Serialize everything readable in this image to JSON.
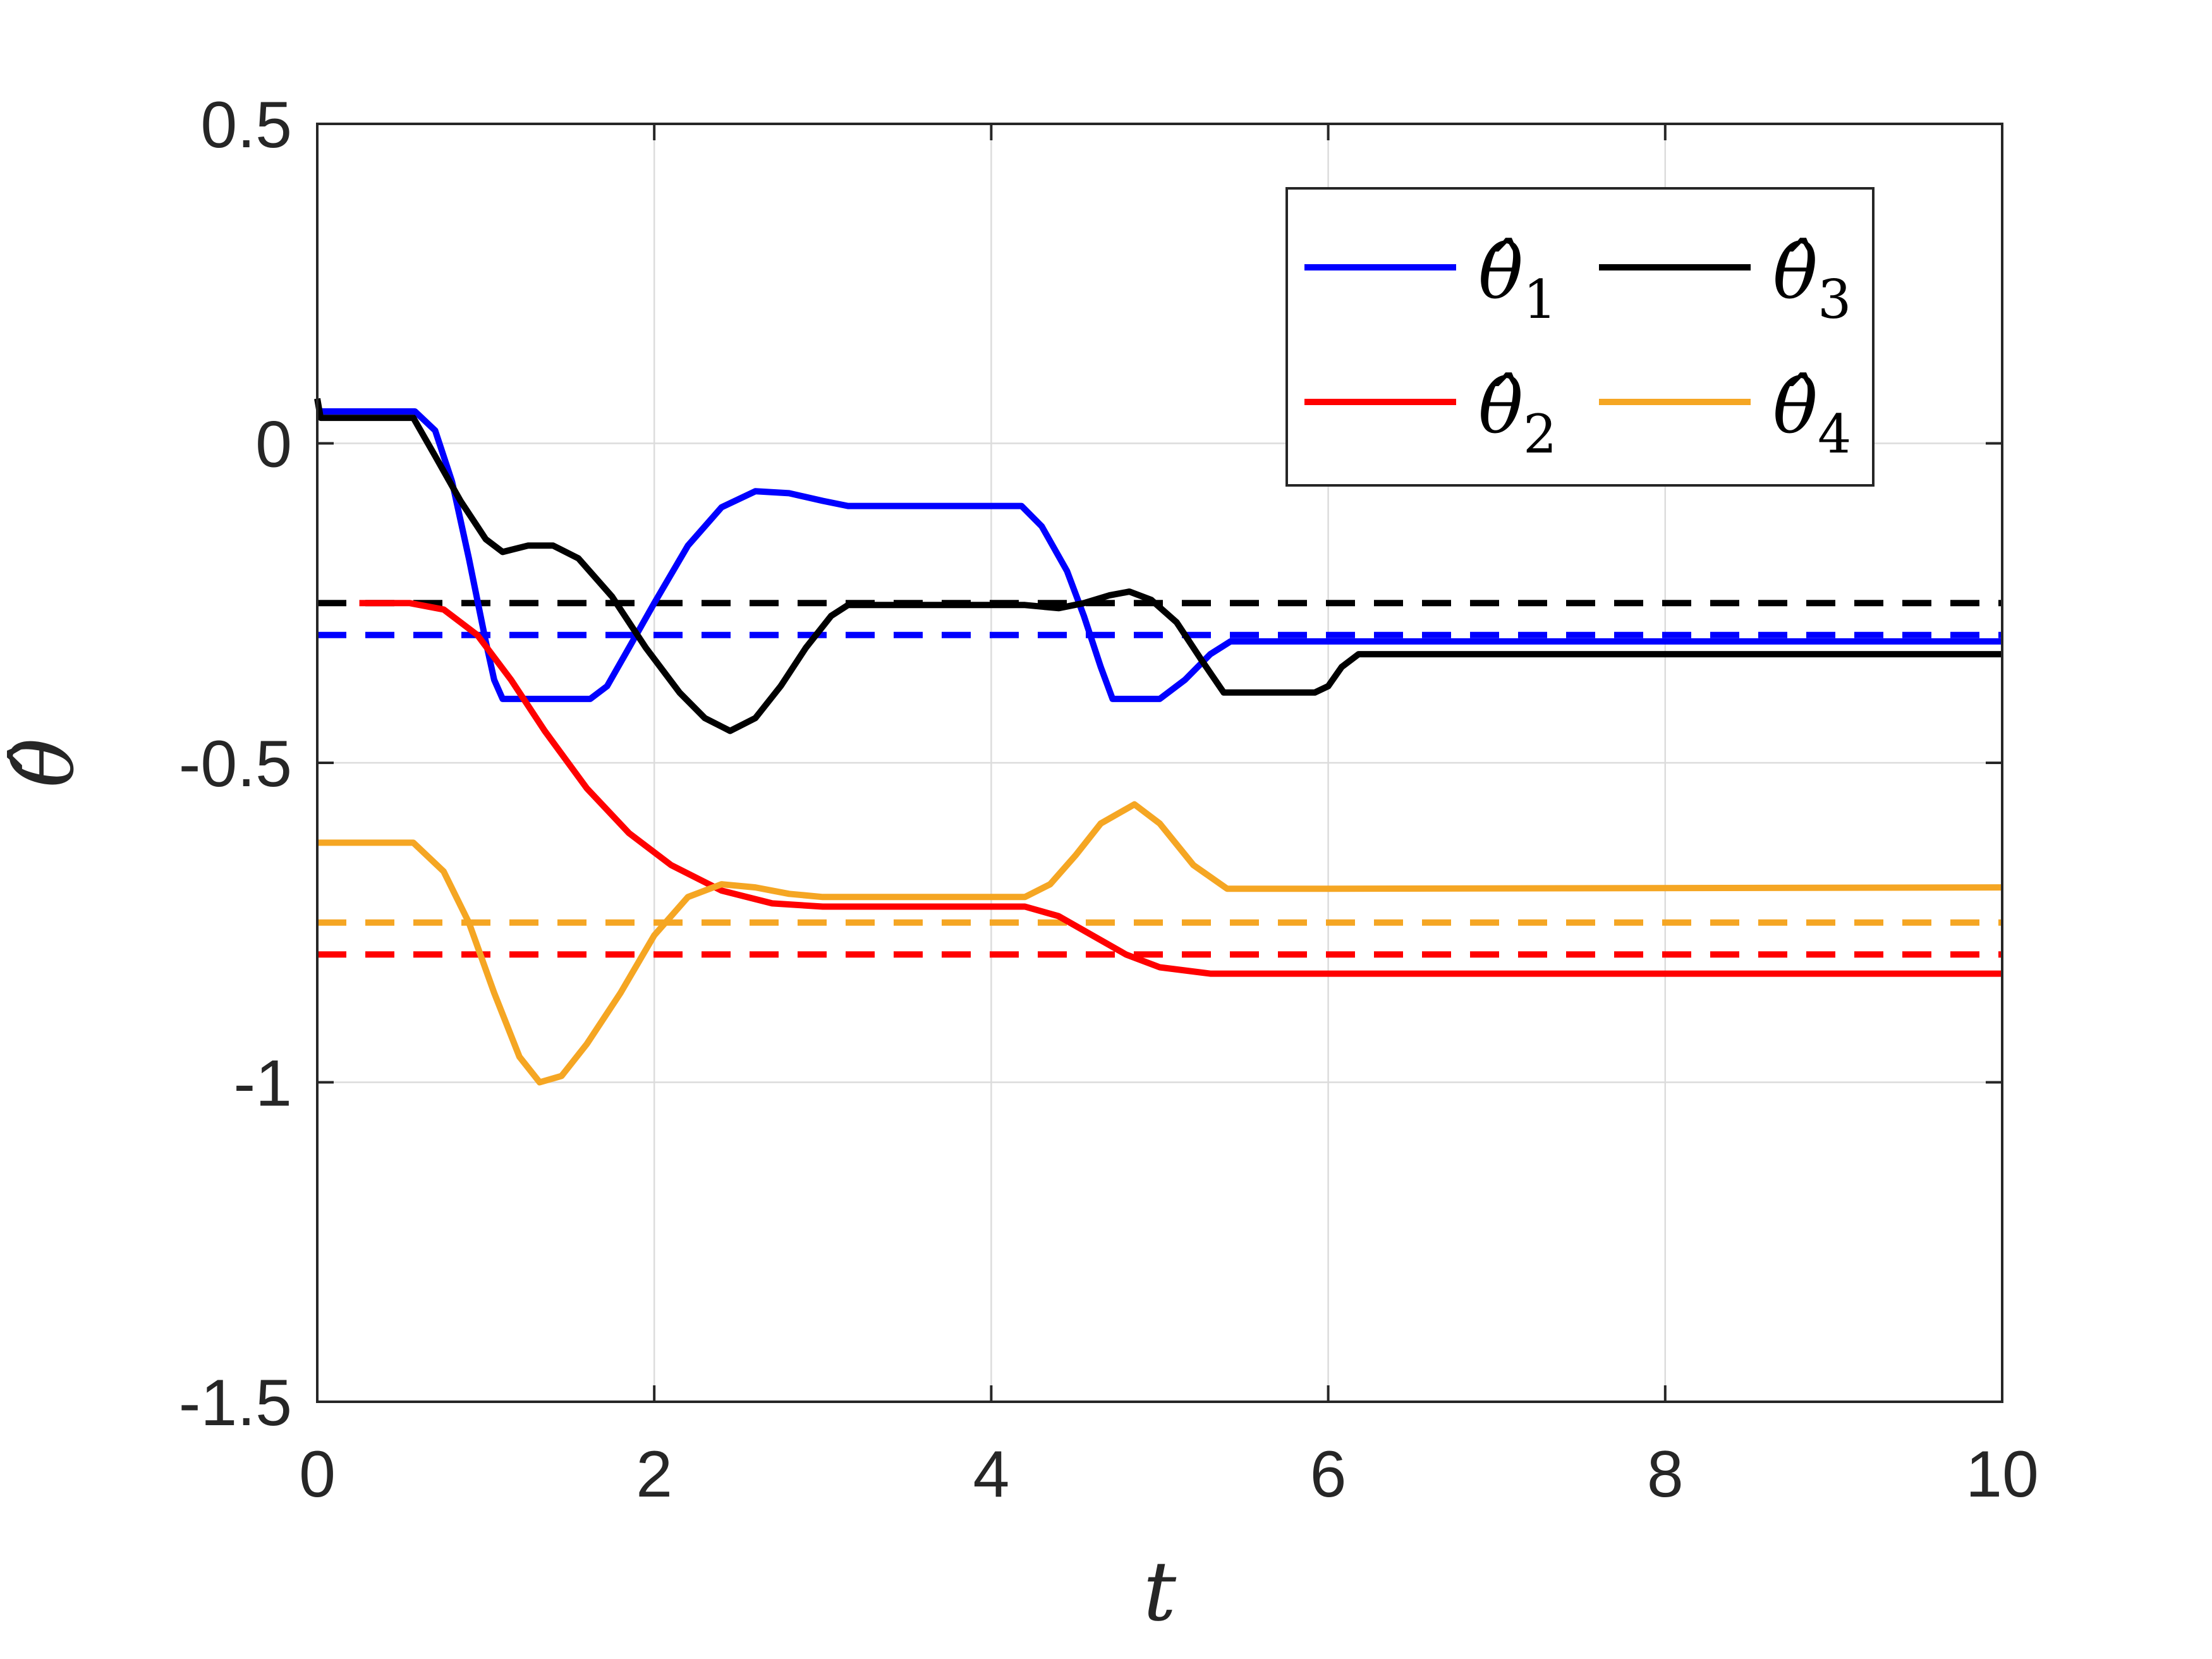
{
  "chart_data": {
    "type": "line",
    "title": "",
    "xlabel": "t",
    "ylabel": "θ̂",
    "xlim": [
      0,
      10
    ],
    "ylim": [
      -1.5,
      0.5
    ],
    "xticks": [
      0,
      2,
      4,
      6,
      8,
      10
    ],
    "yticks": [
      -1.5,
      -1,
      -0.5,
      0,
      0.5
    ],
    "xtick_labels": [
      "0",
      "2",
      "4",
      "6",
      "8",
      "10"
    ],
    "ytick_labels": [
      "-1.5",
      "-1",
      "-0.5",
      "0",
      "0.5"
    ],
    "grid": true,
    "legend_position": "top-right",
    "legend_columns": 2,
    "series": [
      {
        "name": "θ̂1",
        "legend_base": "θ̂",
        "legend_sub": "1",
        "color": "#0000ff",
        "style": "solid",
        "points": [
          [
            0,
            0.05
          ],
          [
            0.58,
            0.05
          ],
          [
            0.7,
            0.02
          ],
          [
            0.8,
            -0.06
          ],
          [
            0.9,
            -0.18
          ],
          [
            1.0,
            -0.31
          ],
          [
            1.05,
            -0.37
          ],
          [
            1.1,
            -0.4
          ],
          [
            1.62,
            -0.4
          ],
          [
            1.72,
            -0.38
          ],
          [
            1.85,
            -0.32
          ],
          [
            2.0,
            -0.25
          ],
          [
            2.2,
            -0.16
          ],
          [
            2.4,
            -0.1
          ],
          [
            2.6,
            -0.075
          ],
          [
            2.8,
            -0.078
          ],
          [
            3.0,
            -0.09
          ],
          [
            3.15,
            -0.098
          ],
          [
            4.18,
            -0.098
          ],
          [
            4.3,
            -0.13
          ],
          [
            4.45,
            -0.2
          ],
          [
            4.55,
            -0.27
          ],
          [
            4.65,
            -0.35
          ],
          [
            4.72,
            -0.4
          ],
          [
            5.0,
            -0.4
          ],
          [
            5.15,
            -0.37
          ],
          [
            5.3,
            -0.33
          ],
          [
            5.42,
            -0.31
          ],
          [
            10,
            -0.31
          ]
        ]
      },
      {
        "name": "θ̂2",
        "legend_base": "θ̂",
        "legend_sub": "2",
        "color": "#ff0000",
        "style": "solid",
        "points": [
          [
            0.25,
            -0.25
          ],
          [
            0.55,
            -0.25
          ],
          [
            0.75,
            -0.26
          ],
          [
            0.95,
            -0.3
          ],
          [
            1.15,
            -0.37
          ],
          [
            1.35,
            -0.45
          ],
          [
            1.6,
            -0.54
          ],
          [
            1.85,
            -0.61
          ],
          [
            2.1,
            -0.66
          ],
          [
            2.4,
            -0.7
          ],
          [
            2.7,
            -0.72
          ],
          [
            3.0,
            -0.725
          ],
          [
            4.2,
            -0.725
          ],
          [
            4.4,
            -0.74
          ],
          [
            4.6,
            -0.77
          ],
          [
            4.8,
            -0.8
          ],
          [
            5.0,
            -0.82
          ],
          [
            5.3,
            -0.83
          ],
          [
            10,
            -0.83
          ]
        ]
      },
      {
        "name": "θ̂3",
        "legend_base": "θ̂",
        "legend_sub": "3",
        "color": "#000000",
        "style": "solid",
        "points": [
          [
            0,
            0.07
          ],
          [
            0.02,
            0.04
          ],
          [
            0.57,
            0.04
          ],
          [
            0.7,
            -0.02
          ],
          [
            0.85,
            -0.09
          ],
          [
            1.0,
            -0.15
          ],
          [
            1.1,
            -0.17
          ],
          [
            1.25,
            -0.16
          ],
          [
            1.4,
            -0.16
          ],
          [
            1.55,
            -0.18
          ],
          [
            1.75,
            -0.24
          ],
          [
            1.95,
            -0.32
          ],
          [
            2.15,
            -0.39
          ],
          [
            2.3,
            -0.43
          ],
          [
            2.45,
            -0.45
          ],
          [
            2.6,
            -0.43
          ],
          [
            2.75,
            -0.38
          ],
          [
            2.9,
            -0.32
          ],
          [
            3.05,
            -0.27
          ],
          [
            3.15,
            -0.253
          ],
          [
            4.2,
            -0.253
          ],
          [
            4.4,
            -0.258
          ],
          [
            4.55,
            -0.25
          ],
          [
            4.7,
            -0.238
          ],
          [
            4.82,
            -0.232
          ],
          [
            4.95,
            -0.245
          ],
          [
            5.1,
            -0.28
          ],
          [
            5.25,
            -0.34
          ],
          [
            5.38,
            -0.39
          ],
          [
            5.92,
            -0.39
          ],
          [
            6.0,
            -0.38
          ],
          [
            6.08,
            -0.35
          ],
          [
            6.18,
            -0.33
          ],
          [
            10,
            -0.33
          ]
        ]
      },
      {
        "name": "θ̂4",
        "legend_base": "θ̂",
        "legend_sub": "4",
        "color": "#f5a623",
        "style": "solid",
        "points": [
          [
            0,
            -0.625
          ],
          [
            0.57,
            -0.625
          ],
          [
            0.75,
            -0.67
          ],
          [
            0.9,
            -0.75
          ],
          [
            1.05,
            -0.86
          ],
          [
            1.2,
            -0.96
          ],
          [
            1.32,
            -1.0
          ],
          [
            1.45,
            -0.99
          ],
          [
            1.6,
            -0.94
          ],
          [
            1.8,
            -0.86
          ],
          [
            2.0,
            -0.77
          ],
          [
            2.2,
            -0.71
          ],
          [
            2.4,
            -0.69
          ],
          [
            2.6,
            -0.695
          ],
          [
            2.8,
            -0.705
          ],
          [
            3.0,
            -0.71
          ],
          [
            4.2,
            -0.71
          ],
          [
            4.35,
            -0.69
          ],
          [
            4.5,
            -0.645
          ],
          [
            4.65,
            -0.595
          ],
          [
            4.85,
            -0.565
          ],
          [
            5.0,
            -0.595
          ],
          [
            5.2,
            -0.66
          ],
          [
            5.4,
            -0.697
          ],
          [
            6.0,
            -0.697
          ],
          [
            10,
            -0.695
          ]
        ]
      },
      {
        "name": "θ1 reference",
        "color": "#0000ff",
        "style": "dashed",
        "points": [
          [
            0,
            -0.3
          ],
          [
            10,
            -0.3
          ]
        ]
      },
      {
        "name": "θ2 reference",
        "color": "#ff0000",
        "style": "dashed",
        "points": [
          [
            0,
            -0.8
          ],
          [
            10,
            -0.8
          ]
        ]
      },
      {
        "name": "θ3 reference",
        "color": "#000000",
        "style": "dashed",
        "points": [
          [
            0,
            -0.25
          ],
          [
            10,
            -0.25
          ]
        ]
      },
      {
        "name": "θ4 reference",
        "color": "#f5a623",
        "style": "dashed",
        "points": [
          [
            0,
            -0.75
          ],
          [
            10,
            -0.75
          ]
        ]
      }
    ]
  }
}
